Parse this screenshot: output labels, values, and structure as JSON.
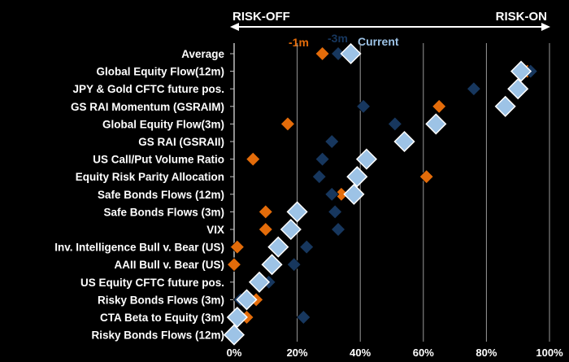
{
  "chart_data": {
    "type": "scatter",
    "header": {
      "left": "RISK-OFF",
      "right": "RISK-ON"
    },
    "xlim": [
      0,
      100
    ],
    "x_ticks": [
      "0%",
      "20%",
      "40%",
      "60%",
      "80%",
      "100%"
    ],
    "grid": true,
    "legend_position": "top",
    "categories": [
      "Average",
      "Global Equity Flow(12m)",
      "JPY & Gold CFTC future pos.",
      "GS RAI Momentum (GSRAIM)",
      "Global Equity Flow(3m)",
      "GS RAI (GSRAII)",
      "US Call/Put Volume Ratio",
      "Equity Risk Parity Allocation",
      "Safe Bonds Flows (12m)",
      "Safe Bonds Flows (3m)",
      "VIX",
      "Inv. Intelligence Bull v. Bear (US)",
      "AAII Bull v. Bear (US)",
      "US Equity CFTC future pos.",
      "Risky Bonds Flows (3m)",
      "CTA Beta to Equity (3m)",
      "Risky Bonds Flows (12m)"
    ],
    "series": [
      {
        "name": "-1m",
        "color": "#e46c0a",
        "size": "small",
        "values": [
          28,
          93,
          89,
          65,
          17,
          31,
          6,
          61,
          34,
          10,
          10,
          1,
          0,
          11,
          7,
          4,
          0
        ]
      },
      {
        "name": "-3m",
        "color": "#17375e",
        "size": "small",
        "values": [
          33,
          94,
          76,
          41,
          51,
          31,
          28,
          27,
          31,
          32,
          33,
          23,
          19,
          11,
          2,
          22,
          1
        ]
      },
      {
        "name": "Current",
        "color": "#9dc3e6",
        "size": "large",
        "values": [
          37,
          91,
          90,
          86,
          64,
          54,
          42,
          39,
          38,
          20,
          18,
          14,
          12,
          8,
          4,
          1,
          0
        ]
      }
    ]
  }
}
